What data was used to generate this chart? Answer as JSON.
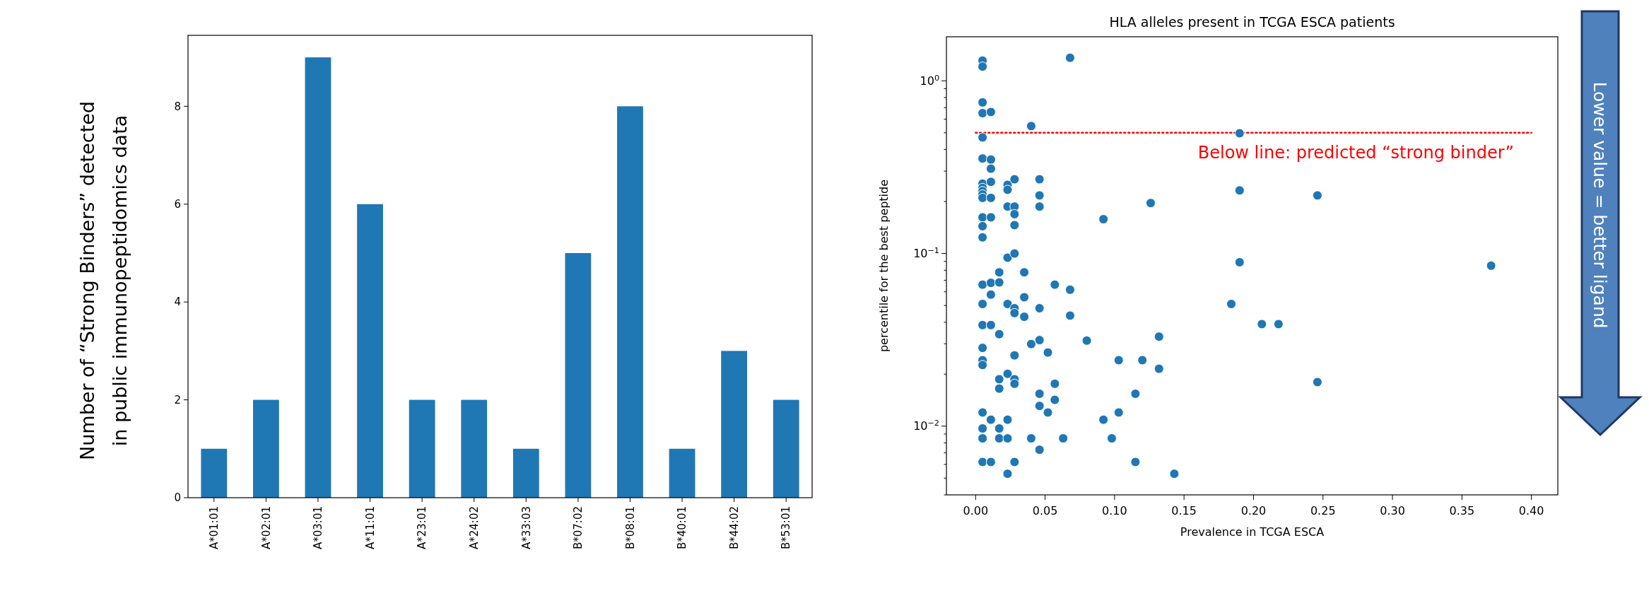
{
  "chart_data": [
    {
      "type": "bar",
      "ylabel": "Number of “Strong Binders” detected in public immunopeptidomics data",
      "categories": [
        "A*01:01",
        "A*02:01",
        "A*03:01",
        "A*11:01",
        "A*23:01",
        "A*24:02",
        "A*33:03",
        "B*07:02",
        "B*08:01",
        "B*40:01",
        "B*44:02",
        "B*53:01"
      ],
      "values": [
        1,
        2,
        9,
        6,
        2,
        2,
        1,
        5,
        8,
        1,
        3,
        2
      ],
      "color": "#1f77b4",
      "ylim": [
        0,
        9.45
      ],
      "yticks": [
        0,
        2,
        4,
        6,
        8
      ],
      "grid": false
    },
    {
      "type": "scatter",
      "title": "HLA alleles present in TCGA ESCA patients",
      "xlabel": "Prevalence in TCGA ESCA",
      "ylabel": "percentile for the best peptide",
      "log": "y",
      "marker": "circle",
      "grid": false,
      "xlim": [
        -0.021,
        0.419
      ],
      "xticks": [
        {
          "value": 0,
          "label": "0.00"
        },
        {
          "value": 0.05,
          "label": "0.05"
        },
        {
          "value": 0.1,
          "label": "0.10"
        },
        {
          "value": 0.15,
          "label": "0.15"
        },
        {
          "value": 0.2,
          "label": "0.20"
        },
        {
          "value": 0.25,
          "label": "0.25"
        },
        {
          "value": 0.3,
          "label": "0.30"
        },
        {
          "value": 0.35,
          "label": "0.35"
        },
        {
          "value": 0.4,
          "label": "0.40"
        }
      ],
      "ylim": [
        0.004,
        1.8
      ],
      "yticks": [
        {
          "value": 0.01,
          "label": "10$^{−2}$"
        },
        {
          "value": 0.1,
          "label": "10$^{−1}$"
        },
        {
          "value": 1,
          "label": "10$^{0}$"
        }
      ],
      "series": [
        {
          "color": "#1f77b4",
          "x": [
            0.005,
            0.005,
            0.005,
            0.005,
            0.005,
            0.005,
            0.005,
            0.005,
            0.005,
            0.005,
            0.005,
            0.005,
            0.005,
            0.005,
            0.005,
            0.005,
            0.005,
            0.005,
            0.005,
            0.005,
            0.005,
            0.005,
            0.005,
            0.005,
            0.011,
            0.011,
            0.011,
            0.011,
            0.011,
            0.011,
            0.011,
            0.011,
            0.011,
            0.011,
            0.011,
            0.017,
            0.017,
            0.017,
            0.017,
            0.017,
            0.017,
            0.017,
            0.023,
            0.023,
            0.023,
            0.023,
            0.023,
            0.023,
            0.023,
            0.023,
            0.023,
            0.028,
            0.028,
            0.028,
            0.028,
            0.028,
            0.028,
            0.028,
            0.028,
            0.028,
            0.028,
            0.028,
            0.035,
            0.035,
            0.035,
            0.04,
            0.04,
            0.04,
            0.046,
            0.046,
            0.046,
            0.046,
            0.046,
            0.046,
            0.046,
            0.046,
            0.052,
            0.052,
            0.057,
            0.057,
            0.057,
            0.063,
            0.068,
            0.068,
            0.068,
            0.08,
            0.092,
            0.092,
            0.098,
            0.103,
            0.103,
            0.115,
            0.115,
            0.12,
            0.126,
            0.132,
            0.132,
            0.143,
            0.184,
            0.19,
            0.19,
            0.19,
            0.206,
            0.218,
            0.246,
            0.246,
            0.371
          ],
          "values": [
            1.31,
            1.21,
            0.75,
            0.65,
            0.47,
            0.355,
            0.254,
            0.24,
            0.23,
            0.22,
            0.21,
            0.162,
            0.144,
            0.124,
            0.066,
            0.051,
            0.0385,
            0.0284,
            0.0241,
            0.0226,
            0.012,
            0.0097,
            0.0085,
            0.0062,
            0.66,
            0.35,
            0.31,
            0.26,
            0.21,
            0.162,
            0.0676,
            0.0578,
            0.0385,
            0.0109,
            0.0062,
            0.0778,
            0.068,
            0.0341,
            0.0187,
            0.0165,
            0.0097,
            0.0085,
            0.25,
            0.234,
            0.187,
            0.0946,
            0.051,
            0.0201,
            0.0109,
            0.0085,
            0.0053,
            0.269,
            0.187,
            0.169,
            0.146,
            0.1,
            0.0482,
            0.0452,
            0.0257,
            0.0187,
            0.0176,
            0.0062,
            0.0778,
            0.0558,
            0.043,
            0.547,
            0.0299,
            0.0085,
            0.269,
            0.217,
            0.187,
            0.0482,
            0.0315,
            0.0154,
            0.0131,
            0.0073,
            0.0267,
            0.012,
            0.066,
            0.0176,
            0.0142,
            0.0085,
            1.36,
            0.0617,
            0.0437,
            0.0313,
            0.158,
            0.0109,
            0.0085,
            0.0241,
            0.012,
            0.0154,
            0.0062,
            0.0241,
            0.196,
            0.033,
            0.0215,
            0.0053,
            0.051,
            0.497,
            0.232,
            0.089,
            0.039,
            0.039,
            0.217,
            0.018,
            0.085
          ]
        }
      ],
      "ref_lines": [
        {
          "axis": "y",
          "value": 0.5,
          "label": "Below line: predicted “strong binder”",
          "color": "#ff0000",
          "line_style": "dotted"
        }
      ],
      "annotations": [
        "Lower value = better ligand"
      ]
    }
  ]
}
